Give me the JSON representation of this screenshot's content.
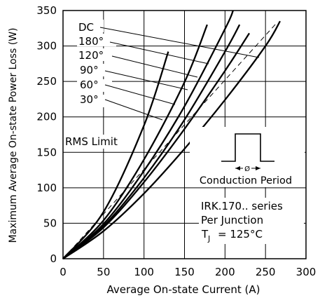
{
  "chart_data": {
    "type": "line",
    "xlabel": "Average On-state Current (A)",
    "ylabel": "Maximum Average On-state Power Loss (W)",
    "xlim": [
      0,
      300
    ],
    "ylim": [
      0,
      350
    ],
    "xticks": [
      "0",
      "50",
      "100",
      "150",
      "200",
      "250",
      "300"
    ],
    "yticks": [
      "0",
      "50",
      "100",
      "150",
      "200",
      "250",
      "300",
      "350"
    ],
    "grid": true,
    "series": [
      {
        "name": "DC",
        "x": [
          0,
          50,
          100,
          150,
          200,
          250,
          268
        ],
        "y": [
          0,
          39,
          92,
          155,
          224,
          300,
          335
        ]
      },
      {
        "name": "180°",
        "x": [
          0,
          50,
          100,
          150,
          200,
          230
        ],
        "y": [
          0,
          44,
          108,
          183,
          265,
          318
        ]
      },
      {
        "name": "120°",
        "x": [
          0,
          50,
          100,
          150,
          200,
          218
        ],
        "y": [
          0,
          46,
          114,
          196,
          292,
          330
        ]
      },
      {
        "name": "90°",
        "x": [
          0,
          50,
          100,
          150,
          200,
          210
        ],
        "y": [
          0,
          49,
          124,
          215,
          324,
          350
        ]
      },
      {
        "name": "60°",
        "x": [
          0,
          50,
          100,
          150,
          178
        ],
        "y": [
          0,
          54,
          140,
          249,
          330
        ]
      },
      {
        "name": "30°",
        "x": [
          0,
          50,
          100,
          130
        ],
        "y": [
          0,
          66,
          188,
          292
        ]
      }
    ],
    "rms_limit": {
      "label": "RMS Limit",
      "x": [
        0,
        100,
        200,
        265
      ],
      "y": [
        0,
        126,
        252,
        334
      ]
    },
    "annotations": {
      "waveform_label": "Conduction Period",
      "phi": "Ø",
      "device": "IRK.170.. series",
      "junction": "Per Junction",
      "tj_prefix": "T",
      "tj_sub": "J",
      "tj_value": "= 125°C"
    }
  }
}
